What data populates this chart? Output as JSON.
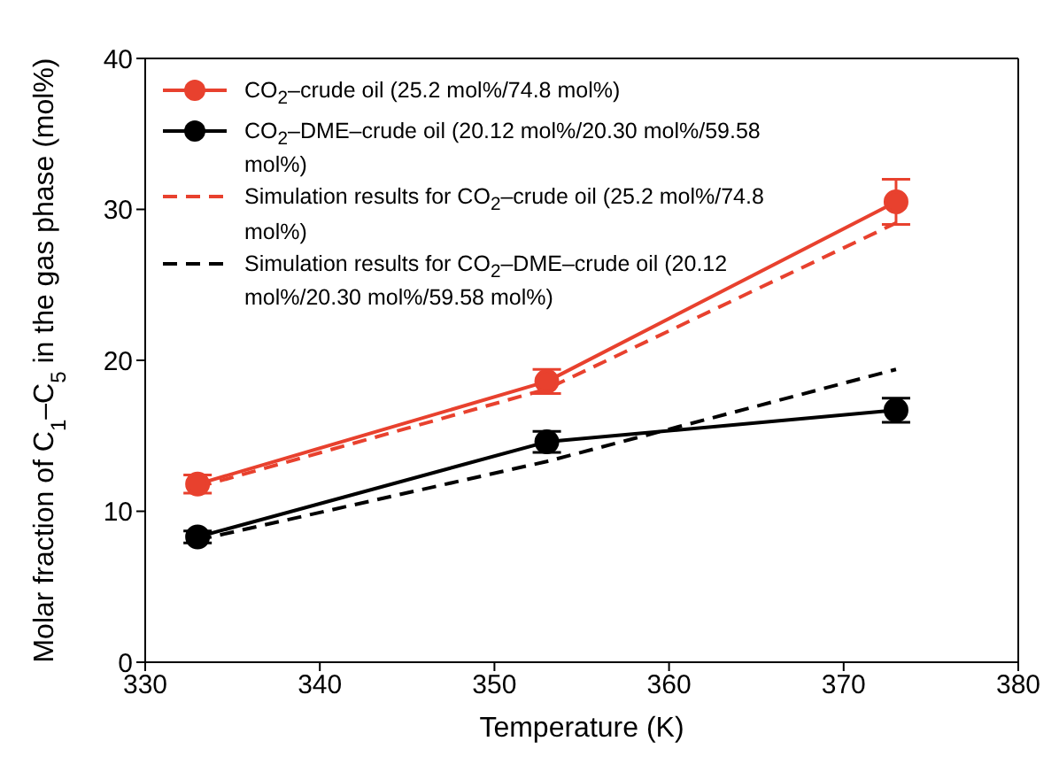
{
  "chart_data": {
    "type": "line",
    "xlabel": "Temperature (K)",
    "ylabel": "Molar fraction of C$_{1}$–C$_{5}$ in the gas phase (mol%)",
    "x": [
      333,
      353,
      373
    ],
    "series": [
      {
        "name": "CO$_{2}$–crude oil (25.2 mol%/74.8 mol%)",
        "color": "#e8412e",
        "values": [
          11.8,
          18.6,
          30.5
        ],
        "errors": [
          0.6,
          0.8,
          1.5
        ],
        "marker": "circle",
        "line_style": "solid"
      },
      {
        "name": "CO$_{2}$–DME–crude oil (20.12 mol%/20.30 mol%/59.58 mol%)",
        "color": "#000000",
        "values": [
          8.3,
          14.6,
          16.7
        ],
        "errors": [
          0.4,
          0.7,
          0.8
        ],
        "marker": "circle",
        "line_style": "solid"
      },
      {
        "name": "Simulation results for CO$_{2}$–crude oil (25.2 mol%/74.8 mol%)",
        "color": "#e8412e",
        "values": [
          11.6,
          18.1,
          29.1
        ],
        "marker": "none",
        "line_style": "dashed"
      },
      {
        "name": "Simulation results for CO$_{2}$–DME–crude oil (20.12 mol%/20.30 mol%/59.58 mol%)",
        "color": "#000000",
        "values": [
          8.1,
          13.3,
          19.4
        ],
        "marker": "none",
        "line_style": "dashed"
      }
    ],
    "xlim": [
      330,
      380
    ],
    "xticks": [
      330,
      340,
      350,
      360,
      370,
      380
    ],
    "ylim": [
      0,
      40
    ],
    "yticks": [
      0,
      10,
      20,
      30,
      40
    ],
    "grid": false,
    "legend": "top left"
  }
}
